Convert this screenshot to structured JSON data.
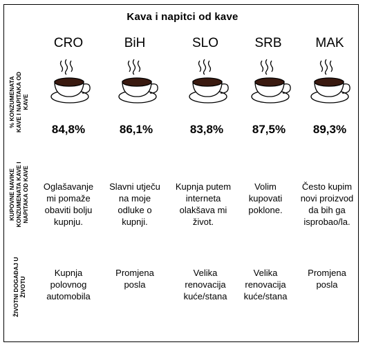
{
  "title": "Kava i napitci od kave",
  "row_labels": [
    "% KONZUMENATA KAVE I NAPITAKA OD KAVE",
    "KUPOVNE NAVIKE KONZUMENATA KAVE I NAPITAKA OD KAVE",
    "ŽIVOTNI DOGAĐAJ U ŽIVOTU"
  ],
  "row_label_lines": [
    [
      "% KONZUMENATA",
      "KAVE I NAPITAKA OD",
      "KAVE"
    ],
    [
      "KUPOVNE NAVIKE",
      "KONZUMENATA KAVE I",
      "NAPITAKA OD KAVE"
    ],
    [
      "ŽIVOTNI DOGAĐAJ U",
      "ŽIVOTU"
    ]
  ],
  "countries": [
    "CRO",
    "BiH",
    "SLO",
    "SRB",
    "MAK"
  ],
  "percentages": [
    "84,8%",
    "86,1%",
    "83,8%",
    "87,5%",
    "89,3%"
  ],
  "habits": [
    [
      "Oglašavanje",
      "mi pomaže",
      "obaviti bolju",
      "kupnju."
    ],
    [
      "Slavni utječu",
      "na moje",
      "odluke o",
      "kupnji."
    ],
    [
      "Kupnja putem",
      "interneta",
      "olakšava mi",
      "život."
    ],
    [
      "Volim",
      "kupovati",
      "poklone."
    ],
    [
      "Često kupim",
      "novi proizvod",
      "da bih ga",
      "isprobao/la."
    ]
  ],
  "events": [
    [
      "Kupnja",
      "polovnog",
      "automobila"
    ],
    [
      "Promjena",
      "posla"
    ],
    [
      "Velika",
      "renovacija",
      "kuće/stana"
    ],
    [
      "Velika",
      "renovacija",
      "kuće/stana"
    ],
    [
      "Promjena",
      "posla"
    ]
  ],
  "icons": {
    "cup": "coffee-cup-icon"
  }
}
